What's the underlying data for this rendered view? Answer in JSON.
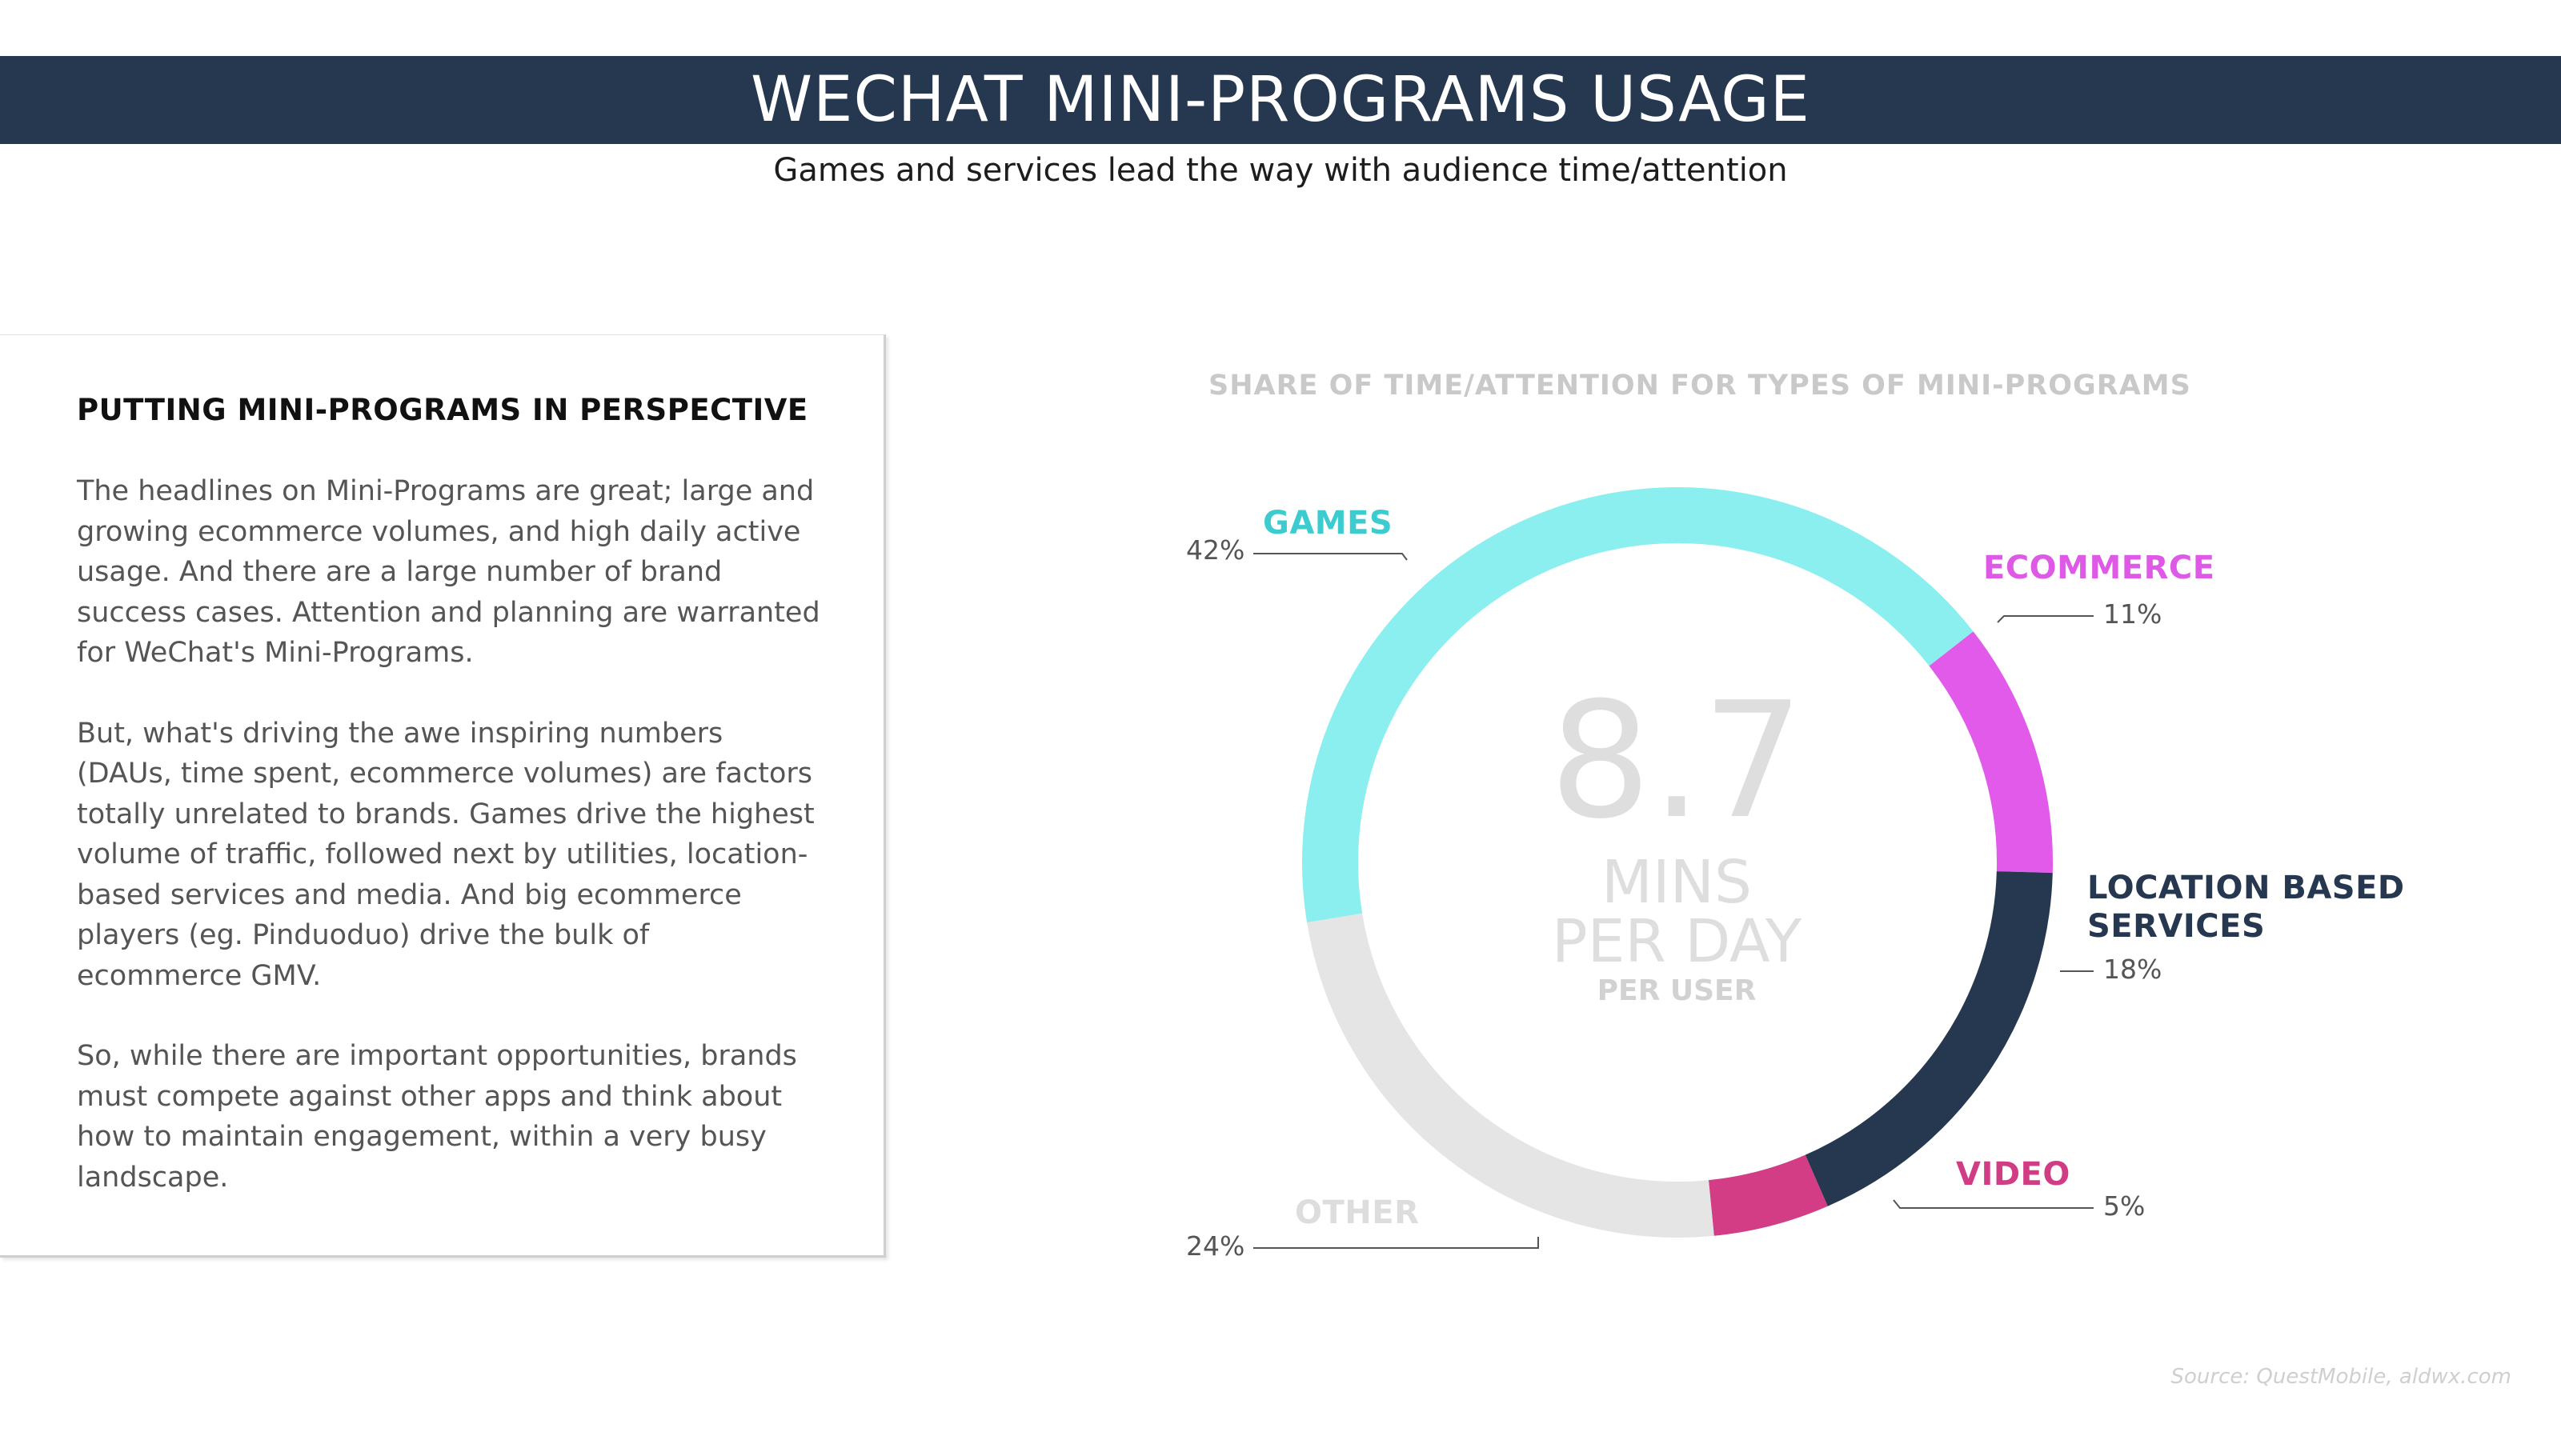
{
  "header": {
    "title": "WECHAT MINI-PROGRAMS USAGE",
    "subtitle": "Games and services lead the way with audience time/attention"
  },
  "panel": {
    "heading": "PUTTING MINI-PROGRAMS IN PERSPECTIVE",
    "paragraphs": [
      "The headlines on Mini-Programs are great; large and growing ecommerce volumes, and high daily active usage. And there are a large number of brand success cases. Attention and planning are warranted for WeChat's Mini-Programs.",
      "But, what's driving the awe inspiring numbers (DAUs, time spent, ecommerce volumes) are factors totally unrelated to brands. Games drive the highest volume of traffic, followed next by utilities, location-based services and media. And big ecommerce players (eg. Pinduoduo) drive the bulk of ecommerce GMV.",
      "So, while there are important opportunities, brands must compete against other apps and think about how to maintain engagement, within a very busy landscape."
    ]
  },
  "center": {
    "value": "8.7",
    "unit_line1": "MINS",
    "unit_line2": "PER DAY",
    "sub": "PER USER"
  },
  "source": "Source: QuestMobile, aldwx.com",
  "chart_data": {
    "type": "pie",
    "variant": "donut",
    "title": "SHARE OF TIME/ATTENTION FOR TYPES OF MINI-PROGRAMS",
    "categories": [
      "GAMES",
      "ECOMMERCE",
      "LOCATION BASED SERVICES",
      "VIDEO",
      "OTHER"
    ],
    "values": [
      42,
      11,
      18,
      5,
      24
    ],
    "labels": [
      "42%",
      "11%",
      "18%",
      "5%",
      "24%"
    ],
    "colors": [
      "#8cefef",
      "#e25aea",
      "#263750",
      "#d23d86",
      "#e5e5e5"
    ],
    "label_colors": [
      "#3ccccf",
      "#de5ae6",
      "#263750",
      "#d13d85",
      "#dddddd"
    ],
    "center_total": 8.7
  }
}
